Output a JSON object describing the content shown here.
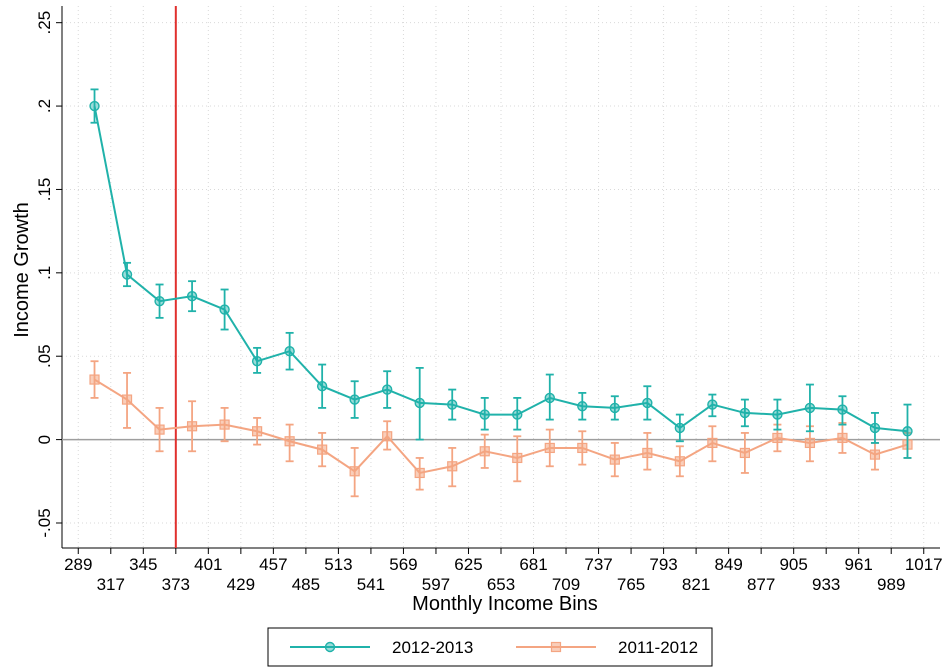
{
  "chart_data": {
    "type": "line",
    "xlabel": "Monthly Income Bins",
    "ylabel": "Income Growth",
    "ylim": [
      -0.065,
      0.26
    ],
    "yticks": [
      -0.05,
      0,
      0.05,
      0.1,
      0.15,
      0.2,
      0.25
    ],
    "ytick_labels": [
      "-.05",
      "0",
      ".05",
      ".1",
      ".15",
      ".2",
      ".25"
    ],
    "xlim": [
      275,
      1031
    ],
    "x": [
      303,
      331,
      359,
      387,
      415,
      443,
      471,
      499,
      527,
      555,
      583,
      611,
      639,
      667,
      695,
      723,
      751,
      779,
      807,
      835,
      863,
      891,
      919,
      947,
      975,
      1003
    ],
    "xticks_upper": [
      289,
      345,
      401,
      457,
      513,
      569,
      625,
      681,
      737,
      793,
      849,
      905,
      961,
      1017
    ],
    "xticks_lower": [
      317,
      373,
      429,
      485,
      541,
      597,
      653,
      709,
      765,
      821,
      877,
      933,
      989
    ],
    "threshold_x": 373,
    "zero_line": true,
    "grid": true,
    "legend_position": "bottom",
    "series": [
      {
        "name": "2012-2013",
        "color": "#20b2aa",
        "marker": "circle",
        "values": [
          0.2,
          0.099,
          0.083,
          0.086,
          0.078,
          0.047,
          0.053,
          0.032,
          0.024,
          0.03,
          0.022,
          0.021,
          0.015,
          0.015,
          0.025,
          0.02,
          0.019,
          0.022,
          0.007,
          0.021,
          0.016,
          0.015,
          0.019,
          0.018,
          0.007,
          0.005
        ],
        "lower": [
          0.19,
          0.092,
          0.073,
          0.077,
          0.066,
          0.04,
          0.042,
          0.019,
          0.013,
          0.019,
          0.0,
          0.012,
          0.006,
          0.006,
          0.012,
          0.012,
          0.012,
          0.012,
          -0.001,
          0.014,
          0.008,
          0.006,
          0.005,
          0.009,
          -0.002,
          -0.011
        ],
        "upper": [
          0.21,
          0.106,
          0.093,
          0.095,
          0.09,
          0.055,
          0.064,
          0.045,
          0.035,
          0.041,
          0.043,
          0.03,
          0.025,
          0.025,
          0.039,
          0.028,
          0.026,
          0.032,
          0.015,
          0.027,
          0.024,
          0.024,
          0.033,
          0.026,
          0.016,
          0.021
        ]
      },
      {
        "name": "2011-2012",
        "color": "#f4a582",
        "marker": "square",
        "values": [
          0.036,
          0.024,
          0.006,
          0.008,
          0.009,
          0.005,
          -0.001,
          -0.006,
          -0.019,
          0.002,
          -0.02,
          -0.016,
          -0.007,
          -0.011,
          -0.005,
          -0.005,
          -0.012,
          -0.008,
          -0.013,
          -0.002,
          -0.008,
          0.001,
          -0.002,
          0.001,
          -0.009,
          -0.003
        ],
        "lower": [
          0.025,
          0.007,
          -0.007,
          -0.007,
          -0.001,
          -0.003,
          -0.013,
          -0.016,
          -0.034,
          -0.006,
          -0.03,
          -0.028,
          -0.017,
          -0.025,
          -0.016,
          -0.015,
          -0.022,
          -0.018,
          -0.022,
          -0.013,
          -0.02,
          -0.007,
          -0.013,
          -0.008,
          -0.018,
          -0.011
        ],
        "upper": [
          0.047,
          0.04,
          0.019,
          0.023,
          0.019,
          0.013,
          0.009,
          0.004,
          -0.005,
          0.011,
          -0.011,
          -0.005,
          0.003,
          0.002,
          0.006,
          0.005,
          -0.002,
          0.004,
          -0.004,
          0.008,
          0.004,
          0.009,
          0.008,
          0.01,
          -0.002,
          0.004
        ]
      }
    ]
  }
}
